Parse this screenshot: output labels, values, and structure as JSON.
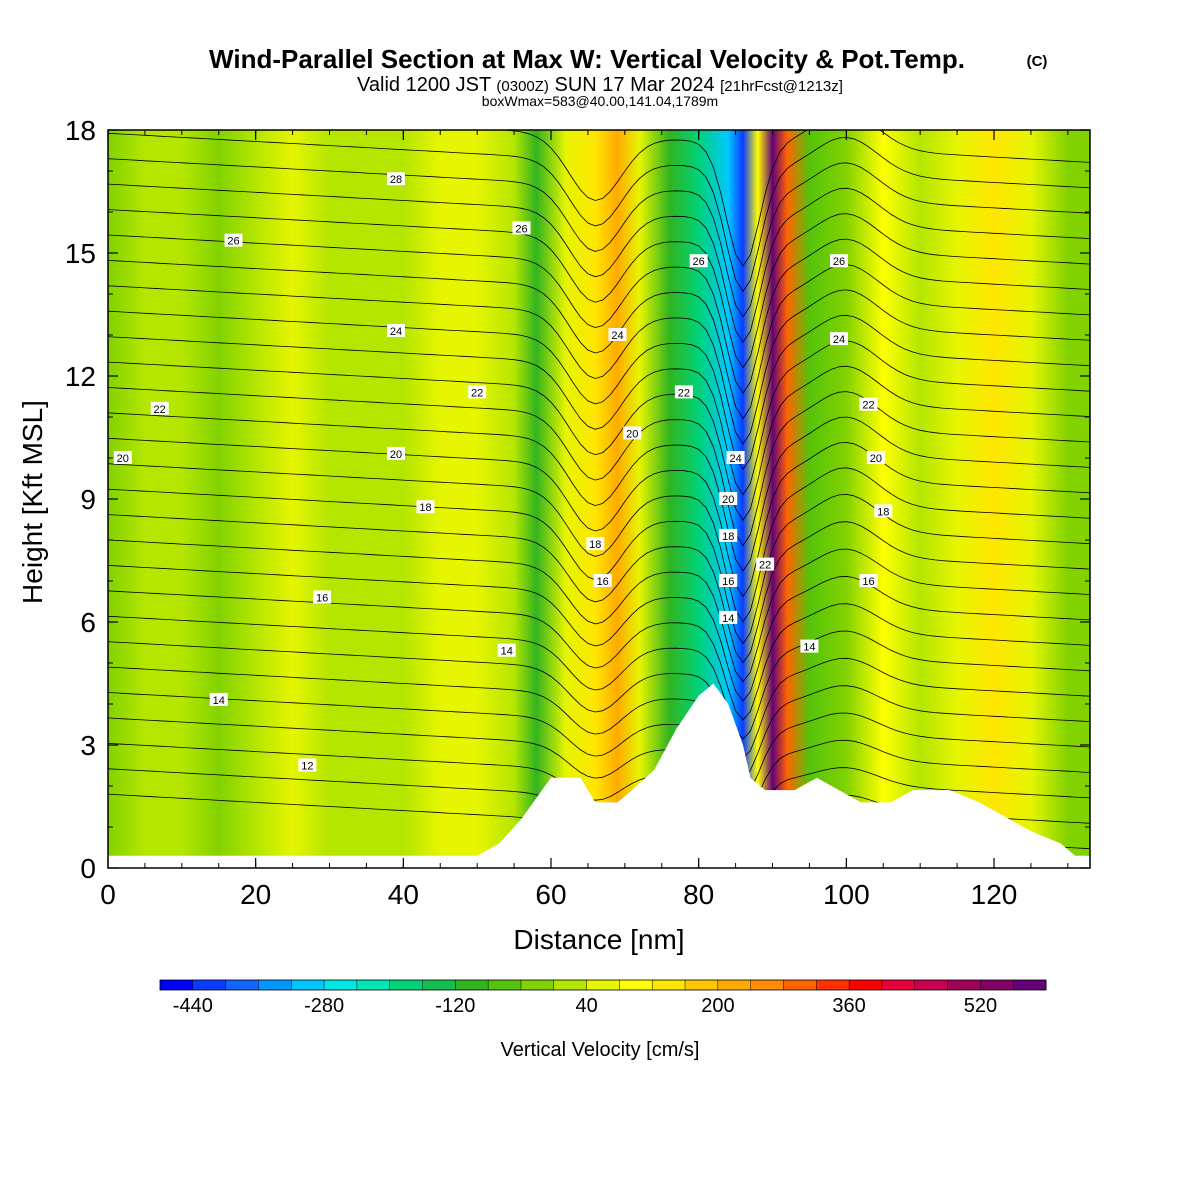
{
  "header": {
    "title_main": "Wind-Parallel Section at Max W: Vertical Velocity & Pot.Temp.",
    "title_mark": "(C)",
    "valid_a": "Valid 1200 JST",
    "valid_b": "(0300Z)",
    "valid_c": "SUN 17 Mar 2024",
    "valid_d": "[21hrFcst@1213z]",
    "box_info": "boxWmax=583@40.00,141.04,1789m"
  },
  "chart_data": {
    "type": "heatmap",
    "xlabel": "Distance [nm]",
    "ylabel": "Height [Kft MSL]",
    "xlim": [
      0,
      133
    ],
    "ylim": [
      0,
      18
    ],
    "x_ticks": [
      "0",
      "20",
      "40",
      "60",
      "80",
      "100",
      "120"
    ],
    "y_ticks": [
      "0",
      "3",
      "6",
      "9",
      "12",
      "15",
      "18"
    ],
    "colorbar": {
      "label": "Vertical Velocity [cm/s]",
      "min": -480,
      "max": 600,
      "tick_labels": [
        "-440",
        "-280",
        "-120",
        "40",
        "200",
        "360",
        "520"
      ],
      "colors": [
        "#0000ff",
        "#0a3cff",
        "#1464ff",
        "#0096ff",
        "#00c8ff",
        "#00e6e6",
        "#00e6b4",
        "#00d278",
        "#14be50",
        "#32b41e",
        "#55c30a",
        "#82d200",
        "#b4e600",
        "#e6f500",
        "#ffff00",
        "#ffe600",
        "#ffc800",
        "#ffaa00",
        "#ff8c00",
        "#ff6400",
        "#ff3200",
        "#ff0000",
        "#e6003c",
        "#c80050",
        "#a0005a",
        "#820064",
        "#640078"
      ]
    },
    "w_field_columns": [
      {
        "x": 0,
        "w": -40
      },
      {
        "x": 5,
        "w": 10
      },
      {
        "x": 10,
        "w": 0
      },
      {
        "x": 15,
        "w": -30
      },
      {
        "x": 20,
        "w": 20
      },
      {
        "x": 25,
        "w": 40
      },
      {
        "x": 30,
        "w": 30
      },
      {
        "x": 35,
        "w": 10
      },
      {
        "x": 40,
        "w": 20
      },
      {
        "x": 45,
        "w": 40
      },
      {
        "x": 50,
        "w": 60
      },
      {
        "x": 55,
        "w": 0
      },
      {
        "x": 58,
        "w": -90
      },
      {
        "x": 62,
        "w": 40
      },
      {
        "x": 66,
        "w": 120
      },
      {
        "x": 69,
        "w": 220
      },
      {
        "x": 72,
        "w": 60
      },
      {
        "x": 76,
        "w": -100
      },
      {
        "x": 80,
        "w": -180
      },
      {
        "x": 84,
        "w": -320
      },
      {
        "x": 86,
        "w": -440
      },
      {
        "x": 88,
        "w": 100
      },
      {
        "x": 90,
        "w": 583
      },
      {
        "x": 92,
        "w": 300
      },
      {
        "x": 95,
        "w": -60
      },
      {
        "x": 100,
        "w": -40
      },
      {
        "x": 105,
        "w": 80
      },
      {
        "x": 110,
        "w": 20
      },
      {
        "x": 115,
        "w": 60
      },
      {
        "x": 120,
        "w": 140
      },
      {
        "x": 125,
        "w": 60
      },
      {
        "x": 130,
        "w": -40
      }
    ],
    "terrain_kft": [
      {
        "x": 0,
        "z": 0.3
      },
      {
        "x": 50,
        "z": 0.3
      },
      {
        "x": 53,
        "z": 0.6
      },
      {
        "x": 56,
        "z": 1.2
      },
      {
        "x": 60,
        "z": 2.2
      },
      {
        "x": 64,
        "z": 2.2
      },
      {
        "x": 66,
        "z": 1.6
      },
      {
        "x": 69,
        "z": 1.6
      },
      {
        "x": 71,
        "z": 1.9
      },
      {
        "x": 74,
        "z": 2.4
      },
      {
        "x": 77,
        "z": 3.4
      },
      {
        "x": 80,
        "z": 4.2
      },
      {
        "x": 82,
        "z": 4.5
      },
      {
        "x": 84,
        "z": 4.0
      },
      {
        "x": 86,
        "z": 3.0
      },
      {
        "x": 87,
        "z": 2.2
      },
      {
        "x": 89,
        "z": 1.9
      },
      {
        "x": 93,
        "z": 1.9
      },
      {
        "x": 96,
        "z": 2.2
      },
      {
        "x": 99,
        "z": 1.9
      },
      {
        "x": 102,
        "z": 1.6
      },
      {
        "x": 106,
        "z": 1.6
      },
      {
        "x": 109,
        "z": 1.9
      },
      {
        "x": 114,
        "z": 1.9
      },
      {
        "x": 118,
        "z": 1.6
      },
      {
        "x": 121,
        "z": 1.3
      },
      {
        "x": 125,
        "z": 0.9
      },
      {
        "x": 129,
        "z": 0.6
      },
      {
        "x": 131,
        "z": 0.3
      },
      {
        "x": 133,
        "z": 0.3
      }
    ],
    "isentrope_labels": [
      {
        "text": "28",
        "x": 39,
        "y": 16.8
      },
      {
        "text": "26",
        "x": 17,
        "y": 15.3
      },
      {
        "text": "26",
        "x": 56,
        "y": 15.6
      },
      {
        "text": "26",
        "x": 80,
        "y": 14.8
      },
      {
        "text": "26",
        "x": 99,
        "y": 14.8
      },
      {
        "text": "24",
        "x": 39,
        "y": 13.1
      },
      {
        "text": "24",
        "x": 69,
        "y": 13.0
      },
      {
        "text": "24",
        "x": 99,
        "y": 12.9
      },
      {
        "text": "24",
        "x": 85,
        "y": 10.0
      },
      {
        "text": "22",
        "x": 7,
        "y": 11.2
      },
      {
        "text": "22",
        "x": 50,
        "y": 11.6
      },
      {
        "text": "22",
        "x": 78,
        "y": 11.6
      },
      {
        "text": "22",
        "x": 103,
        "y": 11.3
      },
      {
        "text": "22",
        "x": 89,
        "y": 7.4
      },
      {
        "text": "20",
        "x": 2,
        "y": 10.0
      },
      {
        "text": "20",
        "x": 39,
        "y": 10.1
      },
      {
        "text": "20",
        "x": 71,
        "y": 10.6
      },
      {
        "text": "20",
        "x": 104,
        "y": 10.0
      },
      {
        "text": "20",
        "x": 84,
        "y": 9.0
      },
      {
        "text": "18",
        "x": 43,
        "y": 8.8
      },
      {
        "text": "18",
        "x": 66,
        "y": 7.9
      },
      {
        "text": "18",
        "x": 105,
        "y": 8.7
      },
      {
        "text": "18",
        "x": 84,
        "y": 8.1
      },
      {
        "text": "16",
        "x": 29,
        "y": 6.6
      },
      {
        "text": "16",
        "x": 67,
        "y": 7.0
      },
      {
        "text": "16",
        "x": 103,
        "y": 7.0
      },
      {
        "text": "16",
        "x": 84,
        "y": 7.0
      },
      {
        "text": "14",
        "x": 15,
        "y": 4.1
      },
      {
        "text": "14",
        "x": 54,
        "y": 5.3
      },
      {
        "text": "14",
        "x": 95,
        "y": 5.4
      },
      {
        "text": "14",
        "x": 84,
        "y": 6.1
      },
      {
        "text": "12",
        "x": 27,
        "y": 2.5
      }
    ]
  }
}
